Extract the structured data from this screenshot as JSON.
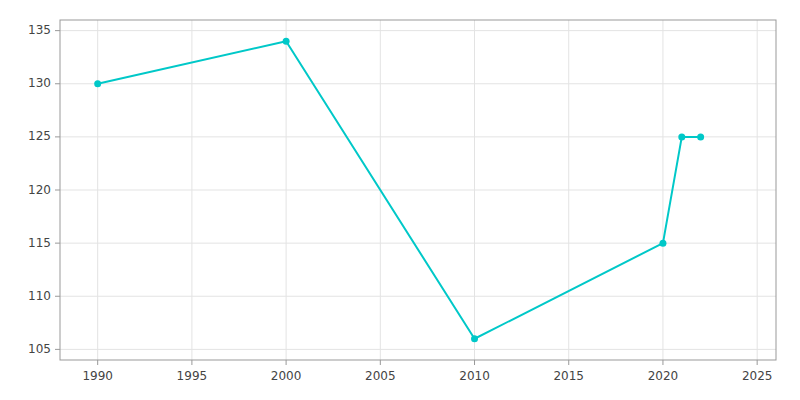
{
  "chart_data": {
    "type": "line",
    "x": [
      1990,
      2000,
      2010,
      2020,
      2021,
      2022
    ],
    "values": [
      130,
      134,
      106,
      115,
      125,
      125
    ],
    "color": "#00c8c8",
    "marker": "circle",
    "xlim": [
      1988,
      2026
    ],
    "ylim": [
      104,
      136
    ],
    "xticks": [
      1990,
      1995,
      2000,
      2005,
      2010,
      2015,
      2020,
      2025
    ],
    "yticks": [
      105,
      110,
      115,
      120,
      125,
      130,
      135
    ],
    "grid": true
  }
}
